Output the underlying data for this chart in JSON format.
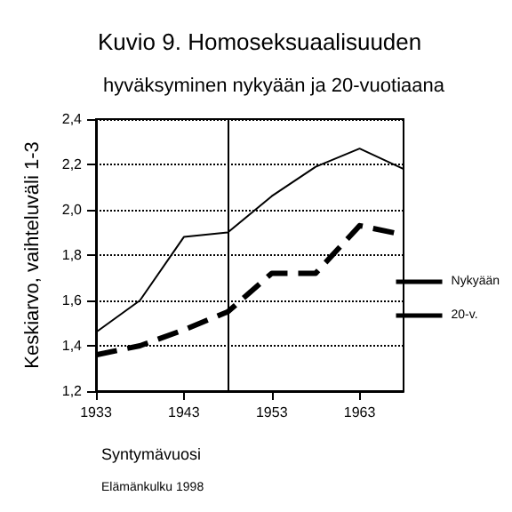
{
  "chart_data": {
    "type": "line",
    "title": "Kuvio 9. Homoseksuaalisuuden",
    "subtitle": "hyväksyminen nykyään ja 20-vuotiaana",
    "xlabel": "Syntymävuosi",
    "ylabel": "Keskiarvo, vaihteluväli 1-3",
    "annotations": [
      "Elämänkulku 1998"
    ],
    "x": [
      1933,
      1938,
      1943,
      1948,
      1953,
      1958,
      1963,
      1968
    ],
    "series": [
      {
        "name": "Nykyään",
        "color": "#000000",
        "line_style": "solid",
        "values": [
          1.46,
          1.6,
          1.88,
          1.9,
          2.06,
          2.19,
          2.27,
          2.18
        ]
      },
      {
        "name": "20-v.",
        "color": "#000000",
        "line_style": "dashed",
        "values": [
          1.36,
          1.4,
          1.47,
          1.55,
          1.72,
          1.72,
          1.93,
          1.89
        ]
      }
    ],
    "xlim": [
      1933,
      1968
    ],
    "xticks": [
      1933,
      1943,
      1953,
      1963
    ],
    "ylim": [
      1.2,
      2.4
    ],
    "yticks": [
      {
        "value": 1.2,
        "label": "1,2"
      },
      {
        "value": 1.4,
        "label": "1,4"
      },
      {
        "value": 1.6,
        "label": "1,6"
      },
      {
        "value": 1.8,
        "label": "1,8"
      },
      {
        "value": 2.0,
        "label": "2,0"
      },
      {
        "value": 2.2,
        "label": "2,2"
      },
      {
        "value": 2.4,
        "label": "2,4"
      }
    ],
    "ref_lines": [
      {
        "axis": "x",
        "value": 1948,
        "color": "#000000",
        "line_style": "solid"
      }
    ],
    "grid": "y",
    "legend": "right",
    "marker": "none"
  }
}
